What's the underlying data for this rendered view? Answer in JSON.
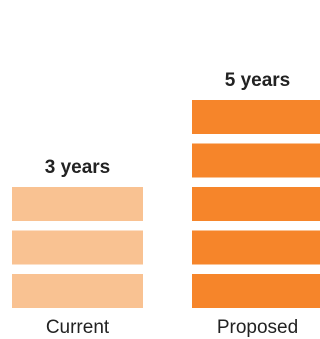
{
  "chart_data": {
    "type": "bar",
    "style": "stacked unit blocks",
    "categories": [
      "Current",
      "Proposed"
    ],
    "values": [
      3,
      5
    ],
    "value_labels": [
      "3 years",
      "5 years"
    ],
    "title": "",
    "xlabel": "",
    "ylabel": "",
    "ylim": [
      0,
      5
    ],
    "grid": false,
    "legend": "none",
    "colors": {
      "Current": "#f9c292",
      "Proposed": "#f6852a"
    }
  }
}
